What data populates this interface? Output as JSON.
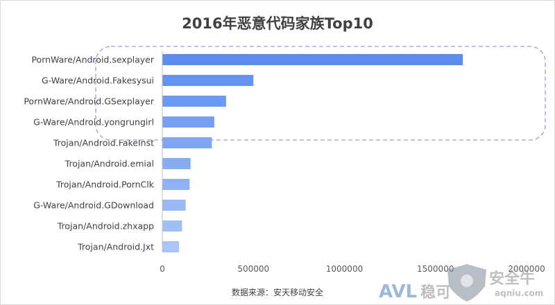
{
  "chart_data": {
    "type": "bar",
    "orientation": "horizontal",
    "title": "2016年恶意代码家族Top10",
    "categories": [
      "PornWare/Android.sexplayer",
      "G-Ware/Android.Fakesysui",
      "PornWare/Android.GSexplayer",
      "G-Ware/Android.yongrungirl",
      "Trojan/Android.FakeInst",
      "Trojan/Android.emial",
      "Trojan/Android.PornClk",
      "G-Ware/Android.GDownload",
      "Trojan/Android.zhxapp",
      "Trojan/Android.Jxt"
    ],
    "values": [
      1650000,
      500000,
      350000,
      285000,
      272000,
      155000,
      150000,
      128000,
      108000,
      92000
    ],
    "xlim": [
      0,
      2000000
    ],
    "xticks": [
      "0",
      "500000",
      "1000000",
      "1500000",
      "2000000"
    ],
    "xlabel": "",
    "ylabel": "",
    "grid": false,
    "source": "数据来源：安天移动安全",
    "highlight": "dashed rounded box around top 5 categories",
    "colors": {
      "bar_dark": "#5b8def",
      "bar_light": "#a9c5f7",
      "highlight_border": "#9e9ad6"
    }
  },
  "watermark": {
    "text_left": "AVL",
    "text_mid": "稳可",
    "text_right": "安全牛",
    "url": "aqniu.com"
  }
}
